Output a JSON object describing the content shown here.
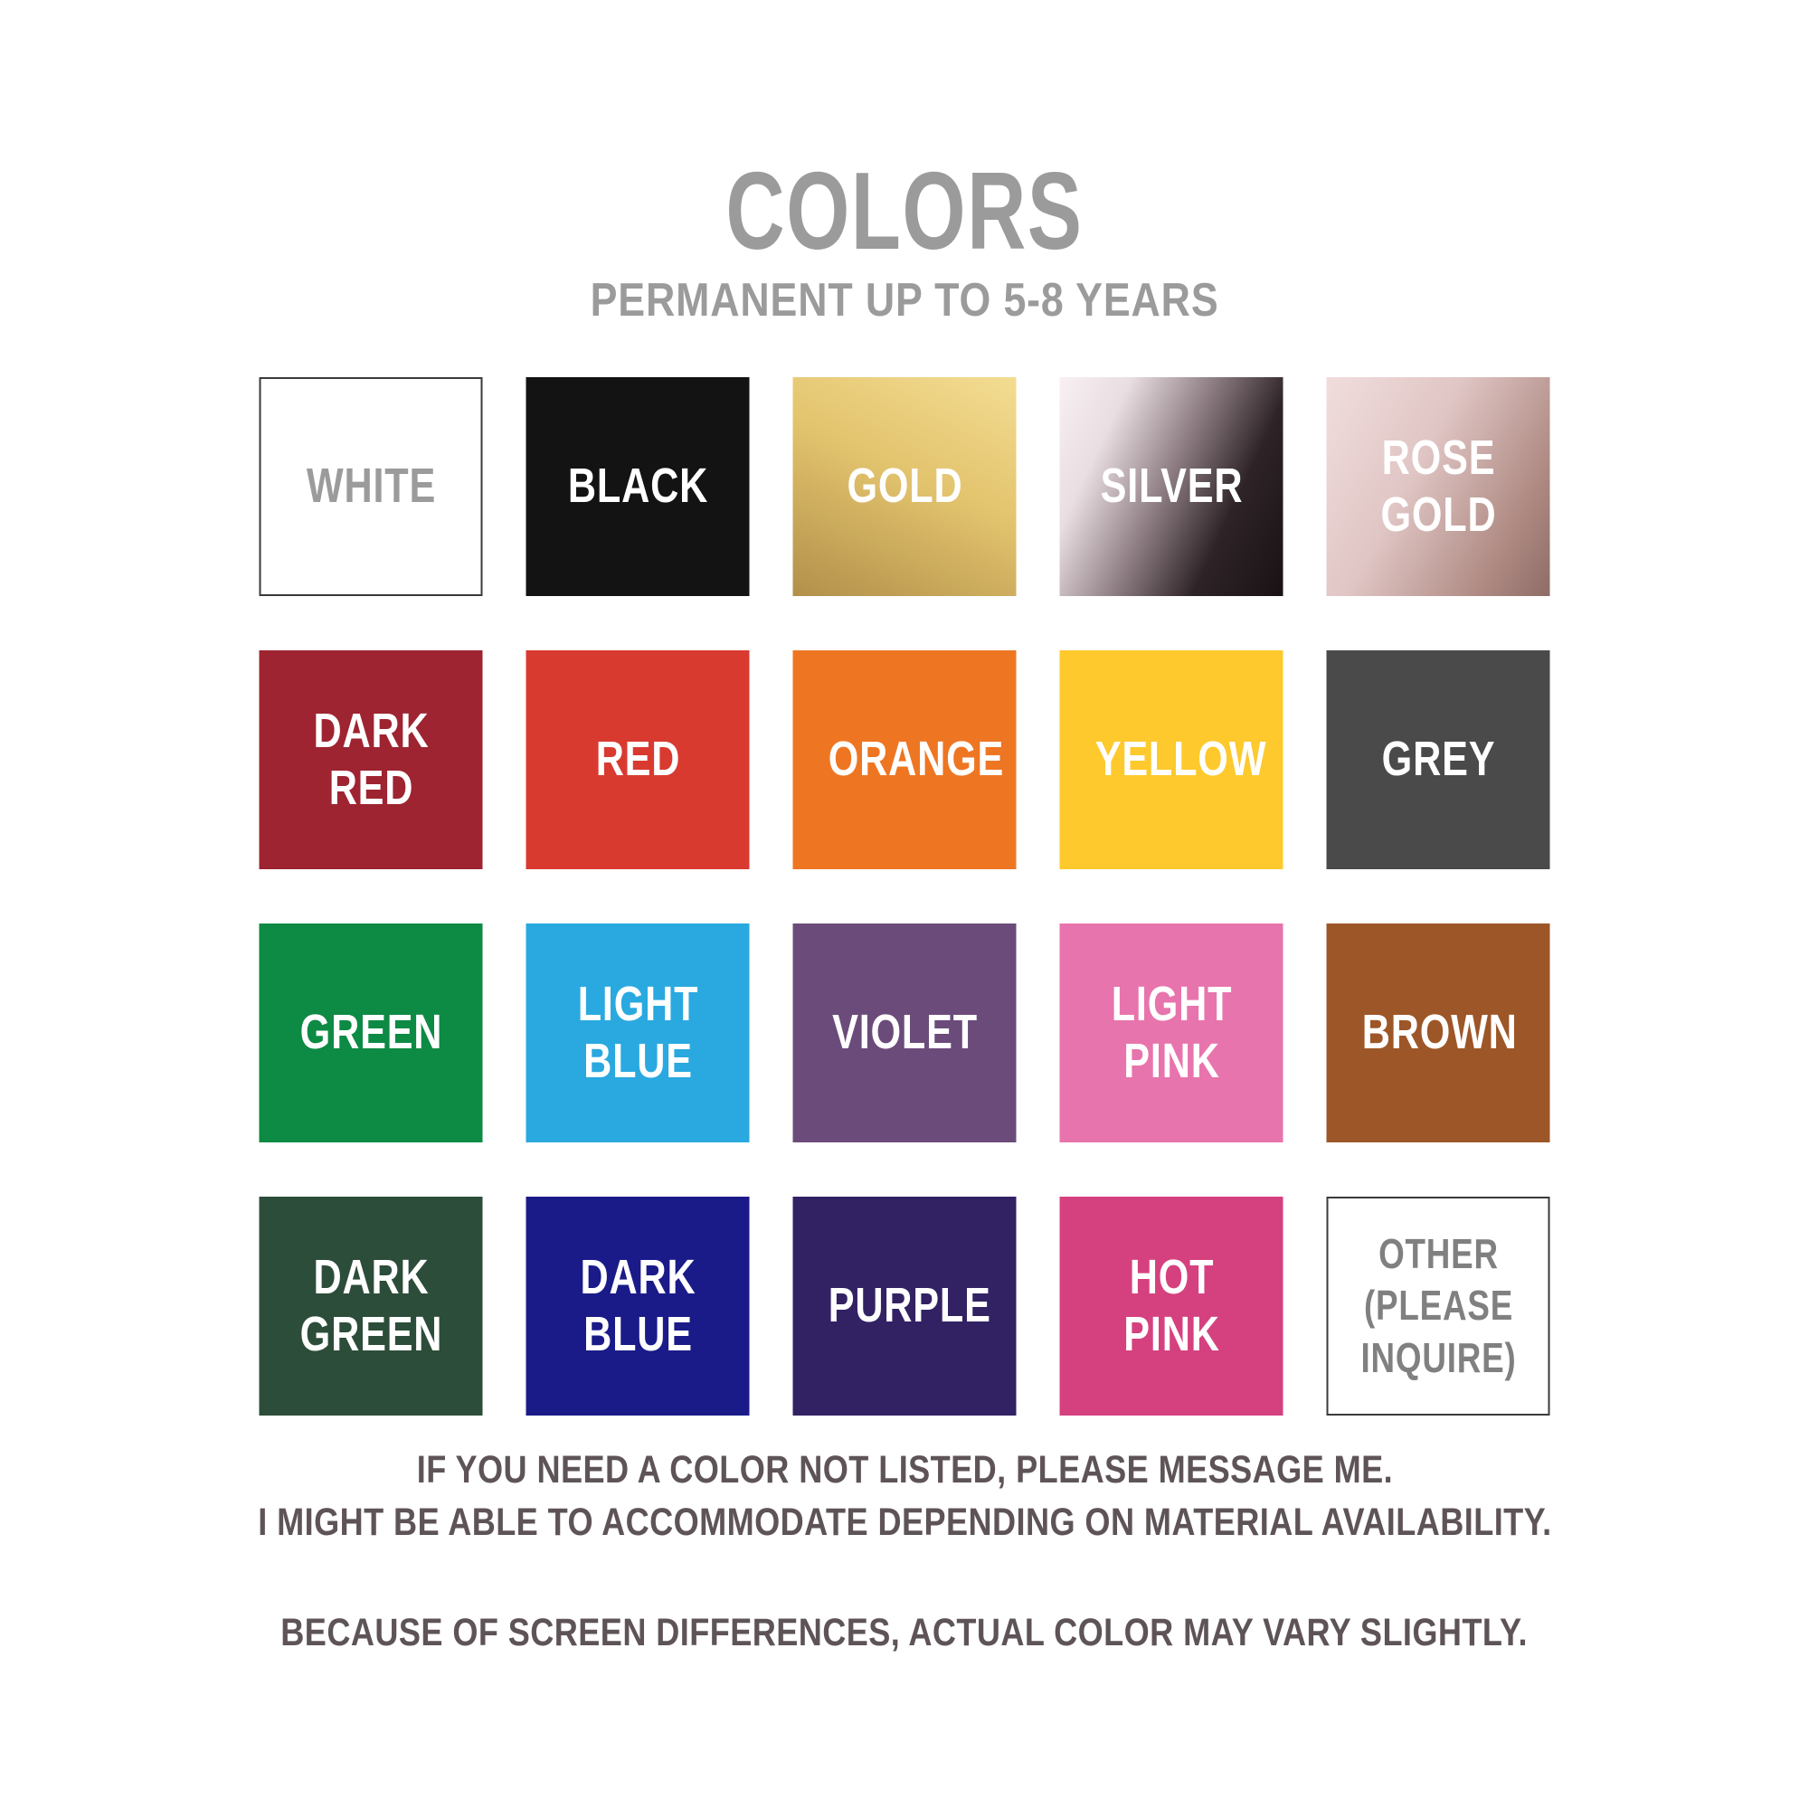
{
  "header": {
    "title": "COLORS",
    "subtitle": "PERMANENT UP TO 5-8 YEARS"
  },
  "palette_meta": {
    "title_text_color": "#9b9b9b",
    "footer_text_color": "#5e5457",
    "outline_color": "#3a3a3a",
    "background": "#ffffff"
  },
  "swatches": [
    {
      "id": "white",
      "label": "WHITE",
      "hex": "#ffffff",
      "css": "#ffffff",
      "text_color": "#9b9b9b",
      "outlined": true
    },
    {
      "id": "black",
      "label": "BLACK",
      "hex": "#131313",
      "css": "#131313",
      "text_color": "#ffffff"
    },
    {
      "id": "gold",
      "label": "GOLD",
      "hex": "#d9b962",
      "stops": [
        "#f2da8e",
        "#dcba66",
        "#ad8b45"
      ],
      "css": "linear-gradient(205deg, #f3dc92 0%, #e3c46e 45%, #b2904a 100%)",
      "text_color": "#ffffff"
    },
    {
      "id": "silver",
      "label": "SILVER",
      "hex": "#8d7d83",
      "stops": [
        "#f8f0f2",
        "#e9dee2",
        "#8d7d83",
        "#2e2427",
        "#191114"
      ],
      "css": "linear-gradient(115deg, #f8f0f2 0%, #e9dee2 22%, #8d7d83 48%, #2e2427 72%, #191114 100%)",
      "text_color": "#ffffff"
    },
    {
      "id": "rose-gold",
      "label": "ROSE GOLD",
      "hex": "#c9a49e",
      "stops": [
        "#f1dddd",
        "#e0c6c5",
        "#b08b84",
        "#8e6d66"
      ],
      "css": "linear-gradient(118deg, #f1dddd 0%, #e0c6c5 40%, #b08b84 78%, #8e6d66 100%)",
      "text_color": "#ffffff"
    },
    {
      "id": "dark-red",
      "label": "DARK RED",
      "hex": "#9e2431",
      "css": "#9e2431",
      "text_color": "#ffffff"
    },
    {
      "id": "red",
      "label": "RED",
      "hex": "#d93a30",
      "css": "#d93a30",
      "text_color": "#ffffff"
    },
    {
      "id": "orange",
      "label": "ORANGE",
      "hex": "#ee7623",
      "css": "#ee7623",
      "text_color": "#ffffff"
    },
    {
      "id": "yellow",
      "label": "YELLOW",
      "hex": "#fdc92d",
      "css": "#fdc92d",
      "text_color": "#ffffff"
    },
    {
      "id": "grey",
      "label": "GREY",
      "hex": "#4a4a4a",
      "css": "#4a4a4a",
      "text_color": "#ffffff"
    },
    {
      "id": "green",
      "label": "GREEN",
      "hex": "#0d8a44",
      "css": "#0d8a44",
      "text_color": "#ffffff"
    },
    {
      "id": "light-blue",
      "label": "LIGHT BLUE",
      "hex": "#29a9e0",
      "css": "#29a9e0",
      "text_color": "#ffffff"
    },
    {
      "id": "violet",
      "label": "VIOLET",
      "hex": "#6b4b7a",
      "css": "#6b4b7a",
      "text_color": "#ffffff"
    },
    {
      "id": "light-pink",
      "label": "LIGHT PINK",
      "hex": "#e874ad",
      "css": "#e874ad",
      "text_color": "#ffffff"
    },
    {
      "id": "brown",
      "label": "BROWN",
      "hex": "#9d5627",
      "css": "#9d5627",
      "text_color": "#ffffff"
    },
    {
      "id": "dark-green",
      "label": "DARK GREEN",
      "hex": "#2c4d39",
      "css": "#2c4d39",
      "text_color": "#ffffff"
    },
    {
      "id": "dark-blue",
      "label": "DARK BLUE",
      "hex": "#1a1b89",
      "css": "#1a1b89",
      "text_color": "#ffffff"
    },
    {
      "id": "purple",
      "label": "PURPLE",
      "hex": "#322264",
      "css": "#322264",
      "text_color": "#ffffff"
    },
    {
      "id": "hot-pink",
      "label": "HOT PINK",
      "hex": "#d5417f",
      "css": "#d5417f",
      "text_color": "#ffffff"
    },
    {
      "id": "other",
      "label": "OTHER (PLEASE INQUIRE)",
      "hex": "#ffffff",
      "css": "#ffffff",
      "text_color": "#808080",
      "outlined": true
    }
  ],
  "footer": {
    "lines": [
      "IF YOU NEED A COLOR NOT LISTED, PLEASE MESSAGE ME.",
      "I MIGHT BE ABLE TO ACCOMMODATE DEPENDING ON MATERIAL AVAILABILITY.",
      "BECAUSE OF SCREEN DIFFERENCES, ACTUAL COLOR MAY VARY SLIGHTLY."
    ]
  }
}
